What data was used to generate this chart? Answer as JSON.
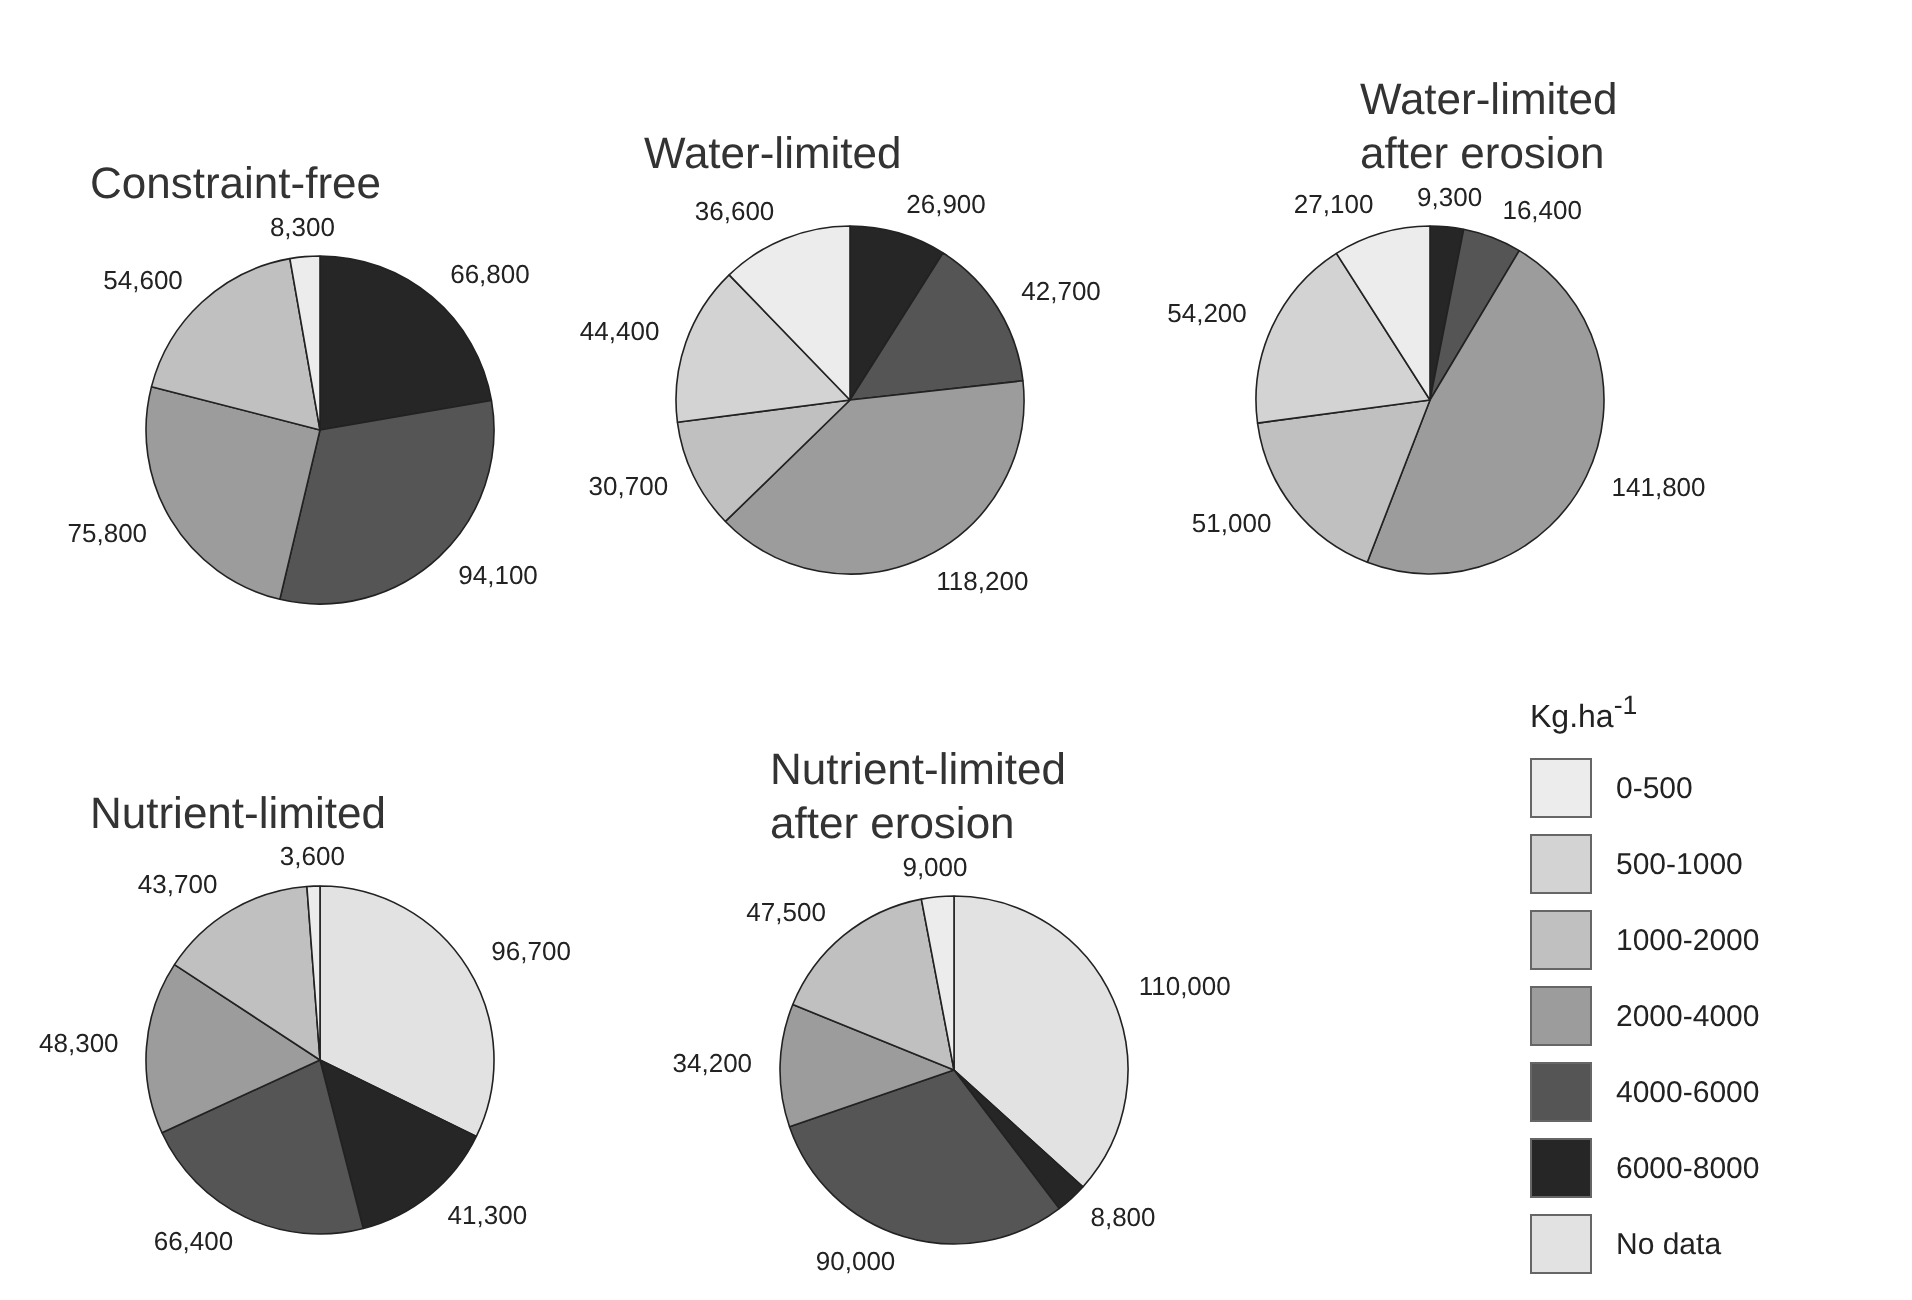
{
  "chart_data": [
    {
      "type": "pie",
      "title": "Constraint-free",
      "values": [
        8300,
        54600,
        75800,
        94100,
        66800
      ],
      "colors": [
        "#ececec",
        "#c0c0c0",
        "#9c9c9c",
        "#555555",
        "#262626"
      ],
      "value_labels": [
        "8,300",
        "54,600",
        "75,800",
        "94,100",
        "66,800"
      ]
    },
    {
      "type": "pie",
      "title": "Water-limited",
      "values": [
        36600,
        44400,
        30700,
        118200,
        42700,
        26900
      ],
      "colors": [
        "#ececec",
        "#d3d3d3",
        "#c0c0c0",
        "#9c9c9c",
        "#555555",
        "#262626"
      ],
      "value_labels": [
        "36,600",
        "44,400",
        "30,700",
        "118,200",
        "42,700",
        "26,900"
      ]
    },
    {
      "type": "pie",
      "title": "Water-limited after erosion",
      "values": [
        27100,
        54200,
        51000,
        141800,
        16400,
        9300
      ],
      "colors": [
        "#ececec",
        "#d3d3d3",
        "#c0c0c0",
        "#9c9c9c",
        "#555555",
        "#262626"
      ],
      "value_labels": [
        "27,100",
        "54,200",
        "51,000",
        "141,800",
        "16,400",
        "9,300"
      ]
    },
    {
      "type": "pie",
      "title": "Nutrient-limited",
      "values": [
        3600,
        43700,
        48300,
        66400,
        41300,
        96700
      ],
      "colors": [
        "#ececec",
        "#c0c0c0",
        "#9c9c9c",
        "#555555",
        "#262626",
        "#e2e2e2"
      ],
      "value_labels": [
        "3,600",
        "43,700",
        "48,300",
        "66,400",
        "41,300",
        "96,700"
      ]
    },
    {
      "type": "pie",
      "title": "Nutrient-limited after erosion",
      "categories": [
        "0-500",
        "500-1000",
        "1000-2000",
        "2000-4000",
        "4000-6000",
        "6000-8000",
        "No data"
      ],
      "values": [
        9000,
        null,
        47500,
        34200,
        90000,
        8800,
        110000
      ],
      "colors": [
        "#ececec",
        "#d3d3d3",
        "#c0c0c0",
        "#9c9c9c",
        "#555555",
        "#262626",
        "#e2e2e2"
      ],
      "value_labels": [
        "9,000",
        null,
        "47,500",
        "34,200",
        "90,000",
        "8,800",
        "110,000"
      ],
      "legend": "right",
      "legend_title": "Kg.ha$^{-1}$"
    }
  ]
}
